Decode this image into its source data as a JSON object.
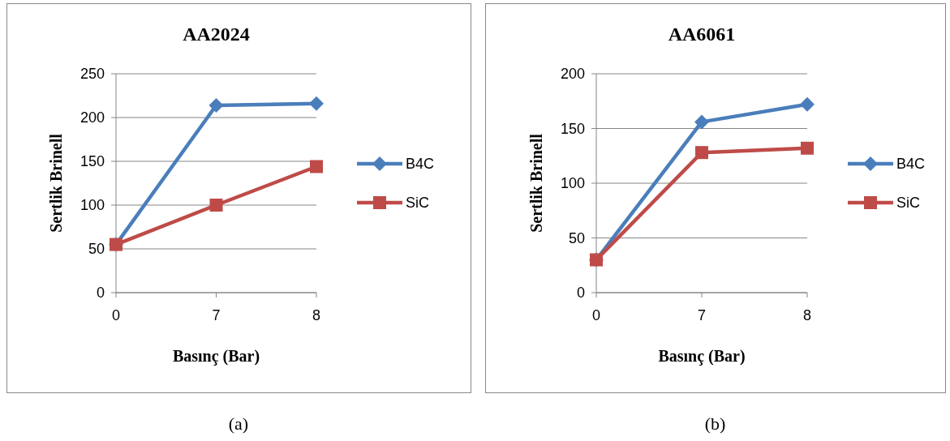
{
  "chart_data": [
    {
      "type": "line",
      "title": "AA2024",
      "xlabel": "Basınç (Bar)",
      "ylabel": "Sertlik Brinell",
      "categories": [
        "0",
        "7",
        "8"
      ],
      "ylim": [
        0,
        250
      ],
      "yticks": [
        0,
        50,
        100,
        150,
        200,
        250
      ],
      "grid": "y",
      "legend": "right",
      "annotations": [
        "(a)"
      ],
      "series": [
        {
          "name": "B4C",
          "color": "#4a7ebb",
          "marker": "diamond",
          "values": [
            55,
            214,
            216
          ]
        },
        {
          "name": "SiC",
          "color": "#be4b48",
          "marker": "square",
          "values": [
            55,
            100,
            144
          ]
        }
      ]
    },
    {
      "type": "line",
      "title": "AA6061",
      "xlabel": "Basınç (Bar)",
      "ylabel": "Sertlik Brinell",
      "categories": [
        "0",
        "7",
        "8"
      ],
      "ylim": [
        0,
        200
      ],
      "yticks": [
        0,
        50,
        100,
        150,
        200
      ],
      "grid": "y",
      "legend": "right",
      "annotations": [
        "(b)"
      ],
      "series": [
        {
          "name": "B4C",
          "color": "#4a7ebb",
          "marker": "diamond",
          "values": [
            30,
            156,
            172
          ]
        },
        {
          "name": "SiC",
          "color": "#be4b48",
          "marker": "square",
          "values": [
            30,
            128,
            132
          ]
        }
      ]
    }
  ]
}
